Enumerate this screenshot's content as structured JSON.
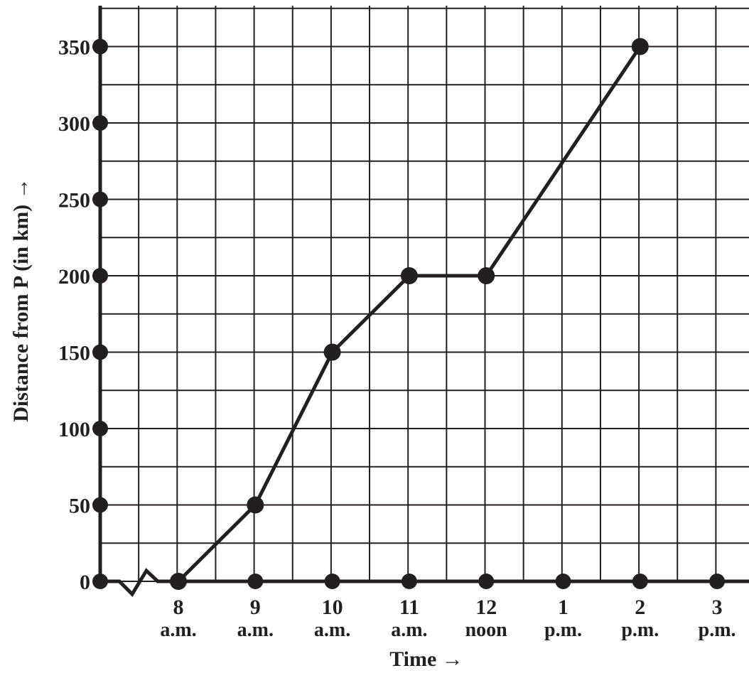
{
  "chart_data": {
    "type": "line",
    "xlabel": "Time →",
    "ylabel": "Distance from P (in km) →",
    "x_ticks": [
      {
        "x": 8,
        "top": "8",
        "bottom": "a.m."
      },
      {
        "x": 9,
        "top": "9",
        "bottom": "a.m."
      },
      {
        "x": 10,
        "top": "10",
        "bottom": "a.m."
      },
      {
        "x": 11,
        "top": "11",
        "bottom": "a.m."
      },
      {
        "x": 12,
        "top": "12",
        "bottom": "noon"
      },
      {
        "x": 13,
        "top": "1",
        "bottom": "p.m."
      },
      {
        "x": 14,
        "top": "2",
        "bottom": "p.m."
      },
      {
        "x": 15,
        "top": "3",
        "bottom": "p.m."
      }
    ],
    "y_ticks": [
      0,
      50,
      100,
      150,
      200,
      250,
      300,
      350
    ],
    "ylim": [
      0,
      375
    ],
    "xlim": [
      7,
      15.5
    ],
    "x_axis_break": true,
    "grid": true,
    "series": [
      {
        "points": [
          {
            "x": 8,
            "y": 0
          },
          {
            "x": 9,
            "y": 50
          },
          {
            "x": 10,
            "y": 150
          },
          {
            "x": 11,
            "y": 200
          },
          {
            "x": 12,
            "y": 200
          },
          {
            "x": 14,
            "y": 350
          }
        ]
      }
    ]
  }
}
